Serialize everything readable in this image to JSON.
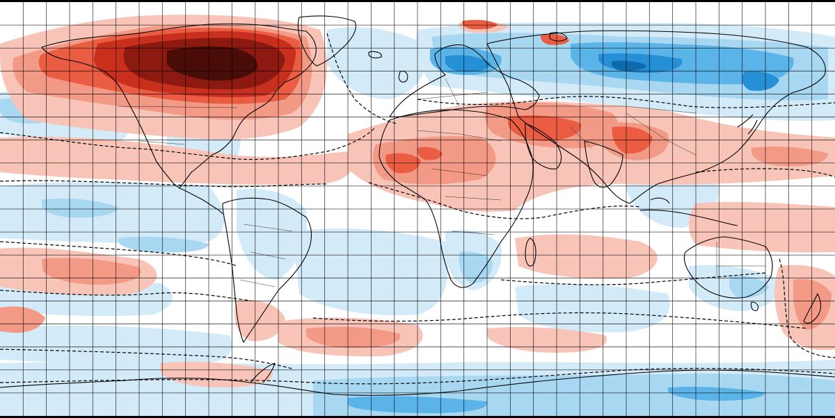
{
  "map": {
    "kind": "global temperature anomaly (equirectangular projection)",
    "projection": "equirectangular",
    "lon_range": [
      -180,
      180
    ],
    "lat_range": [
      -90,
      90
    ],
    "graticule": {
      "lon_step_deg": 10,
      "lat_step_deg": 10,
      "color": "#000000"
    },
    "zero_contour_style": "dashed black",
    "palette": {
      "background": "#ffffff",
      "warm_1": "#f9c4b8",
      "warm_2": "#f39a86",
      "warm_3": "#ea5d43",
      "warm_4": "#c8301d",
      "warm_5": "#8c1a10",
      "warm_6": "#4a0c06",
      "cool_1": "#d3ebf8",
      "cool_2": "#a8d7f2",
      "cool_3": "#5bb4e8",
      "cool_4": "#2590d6",
      "cool_5": "#0f6aab"
    },
    "anomaly_regions": [
      {
        "name": "north-america-arctic-heat",
        "sign": "warm",
        "intensity": 6
      },
      {
        "name": "siberia-cold",
        "sign": "cool",
        "intensity": 5
      },
      {
        "name": "scandinavia-cold",
        "sign": "cool",
        "intensity": 4
      },
      {
        "name": "middle-east-heat",
        "sign": "warm",
        "intensity": 4
      },
      {
        "name": "north-africa-warm",
        "sign": "warm",
        "intensity": 3
      },
      {
        "name": "southern-ocean-cold",
        "sign": "cool",
        "intensity": 3
      },
      {
        "name": "new-zealand-warm",
        "sign": "warm",
        "intensity": 3
      }
    ]
  }
}
